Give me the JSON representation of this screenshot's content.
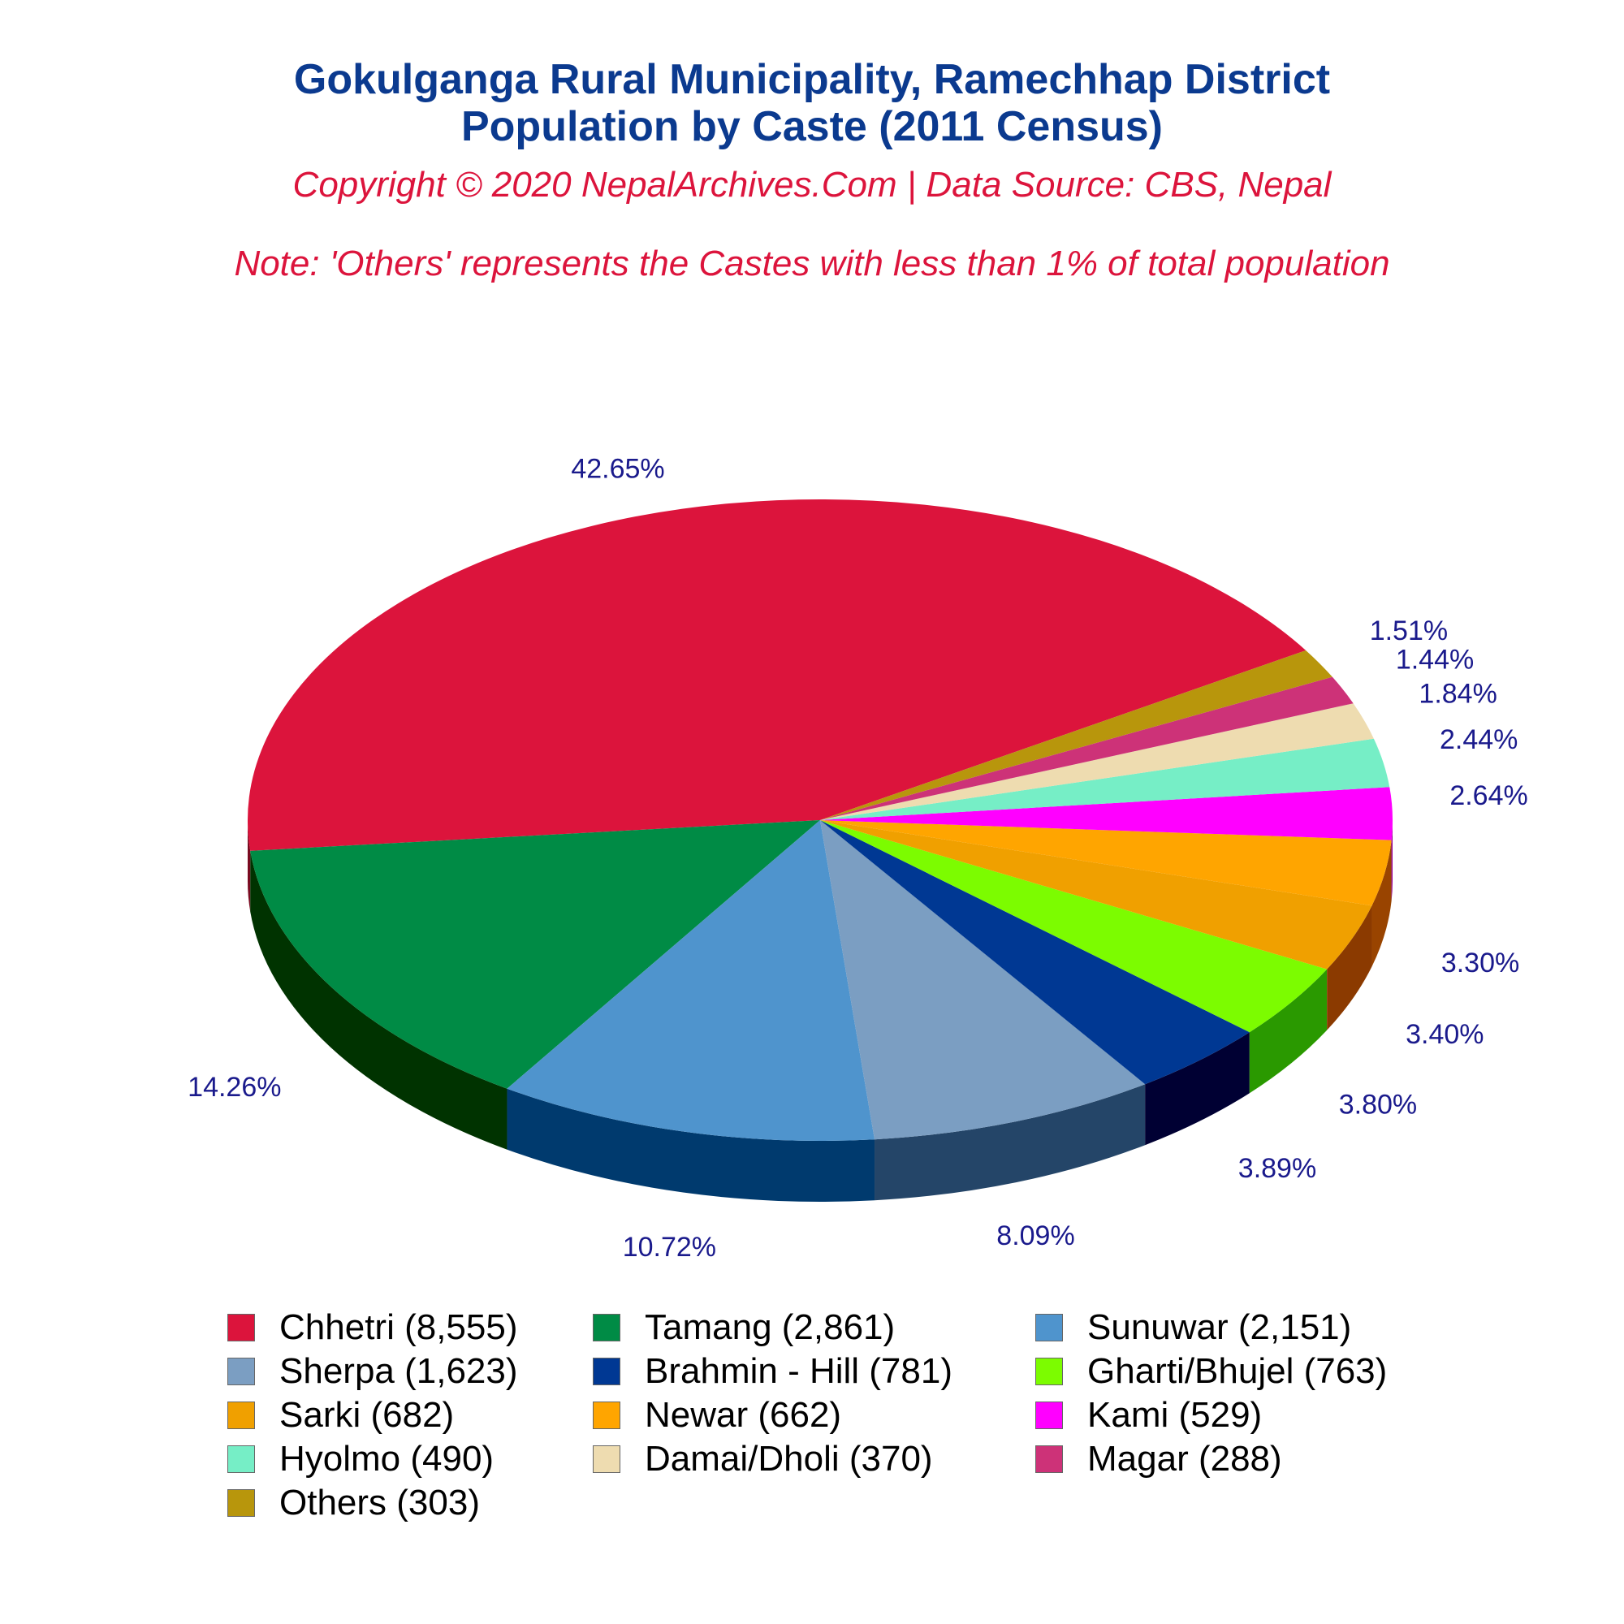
{
  "title_line1": "Gokulganga Rural Municipality, Ramechhap District",
  "title_line2": "Population by Caste (2011 Census)",
  "copyright": "Copyright © 2020 NepalArchives.Com | Data Source: CBS, Nepal",
  "note": "Note: 'Others' represents the Castes with less than 1% of total population",
  "chart_data": {
    "type": "pie",
    "style": "3d",
    "label_color": "#1a1a8c",
    "slices": [
      {
        "label": "Chhetri (8,555)",
        "value": 8555,
        "percent_label": "42.65%",
        "color": "#dc143c",
        "side_color": "#7a0a20"
      },
      {
        "label": "Tamang (2,861)",
        "value": 2861,
        "percent_label": "14.26%",
        "color": "#008b45",
        "side_color": "#003300"
      },
      {
        "label": "Sunuwar (2,151)",
        "value": 2151,
        "percent_label": "10.72%",
        "color": "#4f94cd",
        "side_color": "#003a6e"
      },
      {
        "label": "Sherpa (1,623)",
        "value": 1623,
        "percent_label": "8.09%",
        "color": "#7b9ec2",
        "side_color": "#244568"
      },
      {
        "label": "Brahmin - Hill (781)",
        "value": 781,
        "percent_label": "3.89%",
        "color": "#003893",
        "side_color": "#000033"
      },
      {
        "label": "Gharti/Bhujel (763)",
        "value": 763,
        "percent_label": "3.80%",
        "color": "#7cfc00",
        "side_color": "#2a9900"
      },
      {
        "label": "Sarki (682)",
        "value": 682,
        "percent_label": "3.40%",
        "color": "#f0a000",
        "side_color": "#8b3a00"
      },
      {
        "label": "Newar (662)",
        "value": 662,
        "percent_label": "3.30%",
        "color": "#ffa500",
        "side_color": "#994400"
      },
      {
        "label": "Kami (529)",
        "value": 529,
        "percent_label": "2.64%",
        "color": "#ff00ff",
        "side_color": "#990099"
      },
      {
        "label": "Hyolmo (490)",
        "value": 490,
        "percent_label": "2.44%",
        "color": "#76eec6",
        "side_color": "#3a8a70"
      },
      {
        "label": "Damai/Dholi (370)",
        "value": 370,
        "percent_label": "1.84%",
        "color": "#eedcb0",
        "side_color": "#9e8c60"
      },
      {
        "label": "Magar (288)",
        "value": 288,
        "percent_label": "1.44%",
        "color": "#cd3278",
        "side_color": "#701040"
      },
      {
        "label": "Others (303)",
        "value": 303,
        "percent_label": "1.51%",
        "color": "#b8960c",
        "side_color": "#6a5600"
      }
    ]
  }
}
